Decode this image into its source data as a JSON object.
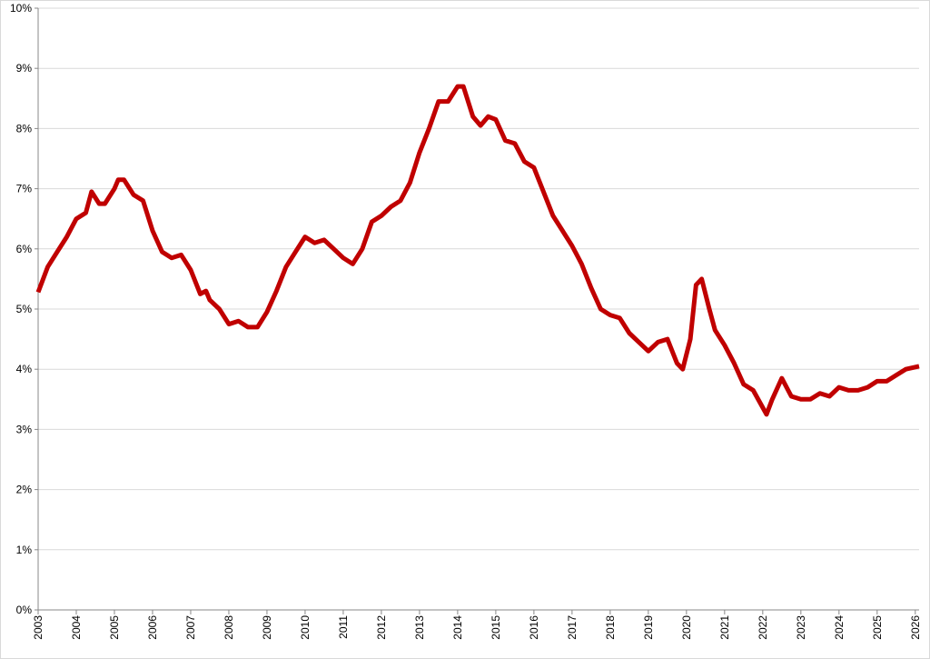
{
  "chart_data": {
    "type": "line",
    "x": [
      2003,
      2003.25,
      2003.5,
      2003.75,
      2004,
      2004.25,
      2004.4,
      2004.6,
      2004.75,
      2005,
      2005.1,
      2005.25,
      2005.5,
      2005.75,
      2006,
      2006.25,
      2006.5,
      2006.75,
      2007,
      2007.25,
      2007.4,
      2007.5,
      2007.75,
      2008,
      2008.25,
      2008.5,
      2008.75,
      2009,
      2009.25,
      2009.5,
      2009.75,
      2010,
      2010.25,
      2010.5,
      2010.75,
      2011,
      2011.25,
      2011.5,
      2011.75,
      2012,
      2012.25,
      2012.5,
      2012.75,
      2013,
      2013.25,
      2013.5,
      2013.75,
      2014,
      2014.15,
      2014.4,
      2014.6,
      2014.8,
      2015,
      2015.25,
      2015.5,
      2015.75,
      2016,
      2016.25,
      2016.5,
      2016.75,
      2017,
      2017.25,
      2017.5,
      2017.75,
      2018,
      2018.25,
      2018.5,
      2018.75,
      2019,
      2019.25,
      2019.5,
      2019.75,
      2019.9,
      2020.1,
      2020.25,
      2020.4,
      2020.6,
      2020.75,
      2021,
      2021.25,
      2021.5,
      2021.75,
      2022.1,
      2022.25,
      2022.5,
      2022.75,
      2023,
      2023.25,
      2023.5,
      2023.75,
      2024,
      2024.25,
      2024.5,
      2024.75,
      2025,
      2025.25,
      2025.5,
      2025.75,
      2026.1
    ],
    "series": [
      {
        "color": "#c00000",
        "values": [
          5.28,
          5.7,
          5.95,
          6.2,
          6.5,
          6.6,
          6.95,
          6.75,
          6.75,
          7.0,
          7.15,
          7.15,
          6.9,
          6.8,
          6.3,
          5.95,
          5.85,
          5.9,
          5.65,
          5.25,
          5.3,
          5.15,
          5.0,
          4.75,
          4.8,
          4.7,
          4.7,
          4.95,
          5.3,
          5.7,
          5.95,
          6.2,
          6.1,
          6.15,
          6.0,
          5.85,
          5.75,
          6.0,
          6.45,
          6.55,
          6.7,
          6.8,
          7.1,
          7.6,
          8.0,
          8.45,
          8.45,
          8.7,
          8.7,
          8.2,
          8.05,
          8.2,
          8.15,
          7.8,
          7.75,
          7.45,
          7.35,
          6.95,
          6.55,
          6.3,
          6.05,
          5.75,
          5.35,
          5.0,
          4.9,
          4.85,
          4.6,
          4.45,
          4.3,
          4.45,
          4.5,
          4.1,
          4.0,
          4.5,
          5.4,
          5.5,
          5.0,
          4.65,
          4.4,
          4.1,
          3.75,
          3.65,
          3.25,
          3.5,
          3.85,
          3.55,
          3.5,
          3.5,
          3.6,
          3.55,
          3.7,
          3.65,
          3.65,
          3.7,
          3.8,
          3.8,
          3.9,
          4.0,
          4.05
        ]
      }
    ],
    "xlim": [
      2003,
      2026.1
    ],
    "xticks": [
      2003,
      2004,
      2005,
      2006,
      2007,
      2008,
      2009,
      2010,
      2011,
      2012,
      2013,
      2014,
      2015,
      2016,
      2017,
      2018,
      2019,
      2020,
      2021,
      2022,
      2023,
      2024,
      2025,
      2026
    ],
    "ylim": [
      0,
      10
    ],
    "yticks": [
      {
        "value": 0,
        "label": "0%"
      },
      {
        "value": 1,
        "label": "1%"
      },
      {
        "value": 2,
        "label": "2%"
      },
      {
        "value": 3,
        "label": "3%"
      },
      {
        "value": 4,
        "label": "4%"
      },
      {
        "value": 5,
        "label": "5%"
      },
      {
        "value": 6,
        "label": "6%"
      },
      {
        "value": 7,
        "label": "7%"
      },
      {
        "value": 8,
        "label": "8%"
      },
      {
        "value": 9,
        "label": "9%"
      },
      {
        "value": 10,
        "label": "10%"
      }
    ],
    "grid": true
  }
}
